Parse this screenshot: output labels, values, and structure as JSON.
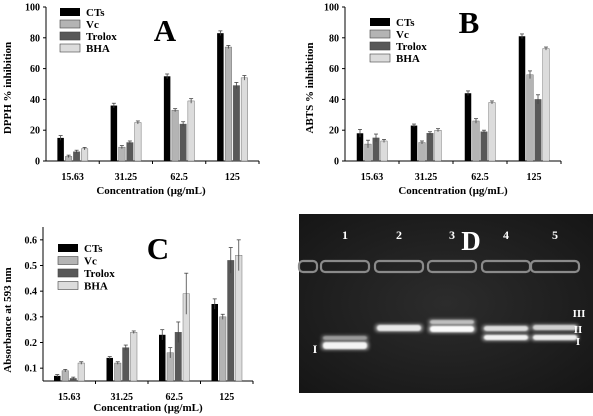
{
  "chart_data": [
    {
      "type": "bar",
      "panel_label": "A",
      "categories": [
        "15.63",
        "31.25",
        "62.5",
        "125"
      ],
      "series": [
        {
          "name": "CTs",
          "values": [
            15,
            36,
            55,
            83
          ],
          "errors": [
            1.5,
            1.5,
            1.5,
            1.5
          ]
        },
        {
          "name": "Vc",
          "values": [
            3,
            9,
            33,
            74
          ],
          "errors": [
            0.8,
            1.0,
            1.0,
            1.0
          ]
        },
        {
          "name": "Trolox",
          "values": [
            6,
            12,
            24,
            49
          ],
          "errors": [
            1.0,
            1.0,
            1.5,
            2.0
          ]
        },
        {
          "name": "BHA",
          "values": [
            8,
            25,
            39,
            54
          ],
          "errors": [
            0.8,
            1.0,
            1.5,
            1.5
          ]
        }
      ],
      "xlabel": "Concentration (µg/mL)",
      "ylabel": "DPPH % inhibition",
      "ylim": [
        0,
        100
      ],
      "yticks": [
        "0",
        "20",
        "40",
        "60",
        "80",
        "100"
      ],
      "legend_position": "top-left"
    },
    {
      "type": "bar",
      "panel_label": "B",
      "categories": [
        "15.63",
        "31.25",
        "62.5",
        "125"
      ],
      "series": [
        {
          "name": "CTs",
          "values": [
            18,
            23,
            44,
            81
          ],
          "errors": [
            2.5,
            1.0,
            1.5,
            1.5
          ]
        },
        {
          "name": "Vc",
          "values": [
            11,
            12,
            26,
            56
          ],
          "errors": [
            2.5,
            1.0,
            1.5,
            2.5
          ]
        },
        {
          "name": "Trolox",
          "values": [
            15,
            18,
            19,
            40
          ],
          "errors": [
            2.5,
            1.0,
            1.0,
            3.0
          ]
        },
        {
          "name": "BHA",
          "values": [
            13,
            20,
            38,
            73
          ],
          "errors": [
            1.0,
            1.0,
            1.0,
            1.0
          ]
        }
      ],
      "xlabel": "Concentration (µg/mL)",
      "ylabel": "ABTS % inhibition",
      "ylim": [
        0,
        100
      ],
      "yticks": [
        "0",
        "20",
        "40",
        "60",
        "80",
        "100"
      ],
      "legend_position": "top-left"
    },
    {
      "type": "bar",
      "panel_label": "C",
      "categories": [
        "15.63",
        "31.25",
        "62.5",
        "125"
      ],
      "series": [
        {
          "name": "CTs",
          "values": [
            0.07,
            0.14,
            0.23,
            0.35
          ],
          "errors": [
            0.005,
            0.005,
            0.02,
            0.02
          ]
        },
        {
          "name": "Vc",
          "values": [
            0.09,
            0.12,
            0.16,
            0.3
          ],
          "errors": [
            0.005,
            0.005,
            0.02,
            0.01
          ]
        },
        {
          "name": "Trolox",
          "values": [
            0.06,
            0.18,
            0.24,
            0.52
          ],
          "errors": [
            0.005,
            0.01,
            0.04,
            0.05
          ]
        },
        {
          "name": "BHA",
          "values": [
            0.12,
            0.24,
            0.39,
            0.54
          ],
          "errors": [
            0.005,
            0.005,
            0.08,
            0.06
          ]
        }
      ],
      "xlabel": "Concentration (µg/mL)",
      "ylabel": "Absorbance at 593 nm",
      "ylim": [
        0.05,
        0.65
      ],
      "yticks": [
        "0.1",
        "0.2",
        "0.3",
        "0.4",
        "0.5",
        "0.6"
      ],
      "ytick_values": [
        0.1,
        0.2,
        0.3,
        0.4,
        0.5,
        0.6
      ],
      "legend_position": "top-left"
    }
  ],
  "series_colors": [
    "#000000",
    "#b4b4b4",
    "#585858",
    "#dcdcdc"
  ],
  "gel": {
    "panel_label": "D",
    "lanes": [
      "1",
      "2",
      "3",
      "4",
      "5"
    ],
    "band_labels": [
      "I",
      "II",
      "III"
    ],
    "left_band_label": "I"
  }
}
